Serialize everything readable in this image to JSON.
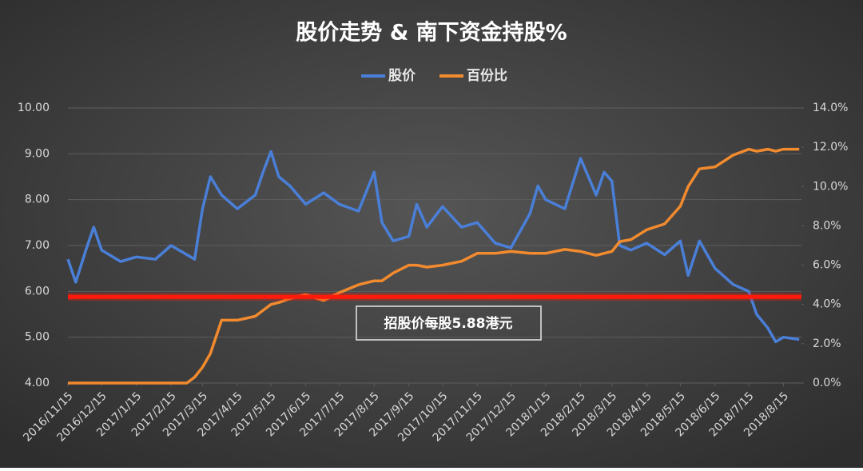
{
  "chart_data": {
    "type": "line",
    "title": "股价走势 & 南下资金持股%",
    "x": [
      "2016/11/15",
      "2016/11/22",
      "2016/12/1",
      "2016/12/8",
      "2016/12/15",
      "2017/1/1",
      "2017/1/15",
      "2017/2/1",
      "2017/2/15",
      "2017/3/1",
      "2017/3/8",
      "2017/3/15",
      "2017/3/22",
      "2017/4/1",
      "2017/4/15",
      "2017/5/1",
      "2017/5/8",
      "2017/5/15",
      "2017/5/22",
      "2017/6/1",
      "2017/6/15",
      "2017/7/1",
      "2017/7/15",
      "2017/8/1",
      "2017/8/15",
      "2017/8/22",
      "2017/9/1",
      "2017/9/15",
      "2017/9/22",
      "2017/10/1",
      "2017/10/15",
      "2017/11/1",
      "2017/11/15",
      "2017/12/1",
      "2017/12/15",
      "2018/1/1",
      "2018/1/8",
      "2018/1/15",
      "2018/2/1",
      "2018/2/15",
      "2018/3/1",
      "2018/3/8",
      "2018/3/15",
      "2018/3/22",
      "2018/4/1",
      "2018/4/15",
      "2018/5/1",
      "2018/5/15",
      "2018/5/22",
      "2018/6/1",
      "2018/6/15",
      "2018/7/1",
      "2018/7/15",
      "2018/7/22",
      "2018/8/1",
      "2018/8/8",
      "2018/8/15",
      "2018/8/29"
    ],
    "series": [
      {
        "name": "股价",
        "color": "#4a7fd8",
        "values": [
          6.7,
          6.2,
          6.9,
          7.4,
          6.9,
          6.65,
          6.75,
          6.7,
          7.0,
          6.8,
          6.7,
          7.8,
          8.5,
          8.1,
          7.8,
          8.1,
          8.6,
          9.05,
          8.5,
          8.3,
          7.9,
          8.15,
          7.9,
          7.75,
          8.6,
          7.5,
          7.1,
          7.2,
          7.9,
          7.4,
          7.85,
          7.4,
          7.5,
          7.05,
          6.95,
          7.7,
          8.3,
          8.0,
          7.8,
          8.9,
          8.1,
          8.6,
          8.4,
          7.0,
          6.9,
          7.05,
          6.8,
          7.1,
          6.35,
          7.1,
          6.5,
          6.15,
          6.0,
          5.5,
          5.2,
          4.9,
          5.0,
          4.95
        ]
      },
      {
        "name": "百份比",
        "color": "#f28a2e",
        "axis": "y2",
        "values": [
          0,
          0,
          0,
          0,
          0,
          0,
          0,
          0,
          0,
          0,
          0.3,
          0.8,
          1.5,
          3.2,
          3.2,
          3.4,
          3.7,
          4.0,
          4.1,
          4.3,
          4.5,
          4.2,
          4.6,
          5.0,
          5.2,
          5.2,
          5.6,
          6.0,
          6.0,
          5.9,
          6.0,
          6.2,
          6.6,
          6.6,
          6.7,
          6.6,
          6.6,
          6.6,
          6.8,
          6.7,
          6.5,
          6.6,
          6.7,
          7.2,
          7.3,
          7.8,
          8.1,
          9.0,
          10.0,
          10.9,
          11.0,
          11.6,
          11.9,
          11.8,
          11.9,
          11.8,
          11.9,
          11.9
        ]
      }
    ],
    "xlim": [
      "2016/11/15",
      "2018/8/31"
    ],
    "xticks": [
      "2016/11/15",
      "2016/12/15",
      "2017/1/15",
      "2017/2/15",
      "2017/3/15",
      "2017/4/15",
      "2017/5/15",
      "2017/6/15",
      "2017/7/15",
      "2017/8/15",
      "2017/9/15",
      "2017/10/15",
      "2017/11/15",
      "2017/12/15",
      "2018/1/15",
      "2018/2/15",
      "2018/3/15",
      "2018/4/15",
      "2018/5/15",
      "2018/6/15",
      "2018/7/15",
      "2018/8/15"
    ],
    "ylim": [
      4,
      10
    ],
    "yticks": [
      {
        "value": 4,
        "label": "4.00"
      },
      {
        "value": 5,
        "label": "5.00"
      },
      {
        "value": 6,
        "label": "6.00"
      },
      {
        "value": 7,
        "label": "7.00"
      },
      {
        "value": 8,
        "label": "8.00"
      },
      {
        "value": 9,
        "label": "9.00"
      },
      {
        "value": 10,
        "label": "10.00"
      }
    ],
    "y2lim": [
      0,
      14
    ],
    "y2ticks": [
      {
        "value": 0,
        "label": "0.0%"
      },
      {
        "value": 2,
        "label": "2.0%"
      },
      {
        "value": 4,
        "label": "4.0%"
      },
      {
        "value": 6,
        "label": "6.0%"
      },
      {
        "value": 8,
        "label": "8.0%"
      },
      {
        "value": 10,
        "label": "10.0%"
      },
      {
        "value": 12,
        "label": "12.0%"
      },
      {
        "value": 14,
        "label": "14.0%"
      }
    ],
    "grid": true,
    "legend": "top",
    "reference_line": {
      "value": 5.88,
      "label": "招股价每股5.88港元",
      "color": "#ff1a0a"
    }
  }
}
